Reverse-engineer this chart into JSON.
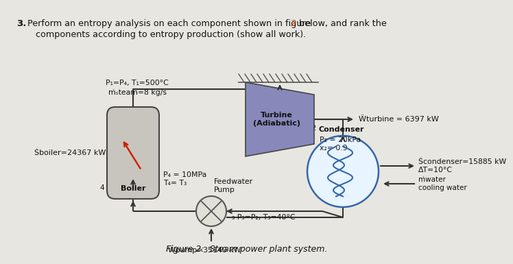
{
  "bg_color": "#e8e6e0",
  "title_line1": "Perform an entropy analysis on each component shown in figure ",
  "title_2": "2",
  "title_line1b": " below, and rank the",
  "title_line2": "   components according to entropy production (show all work).",
  "figure_caption": "Figure 2:  Steam power plant system.",
  "boiler_label": "Boiler",
  "turbine_label": "Turbine\n(Adiabatic)",
  "condenser_label": "Condenser",
  "pump_label": "Feedwater\nPump",
  "p1_label": "P₁=P₄, T₁=500°C",
  "mdot_label": "ṁsteam=8 kg/s",
  "w_turbine_label": "Ẅturbine = 6397 kW",
  "p2_label": "P₂ = 20kPa\nx₂= 0.9",
  "q_boiler_label": "Ṡboiler=24367 kW",
  "p4_label": "P₄ = 10MPa\nT₄= T₃",
  "q_condenser_label": "Ṡcondenser=15885 kW\nΔT=10°C",
  "cooling_water_label": "Ṁwater\ncooling water",
  "p3_label": "₃ P₃=P₂, T₃=40°C",
  "w_pump_label": "Ẅpump=35140 kW"
}
